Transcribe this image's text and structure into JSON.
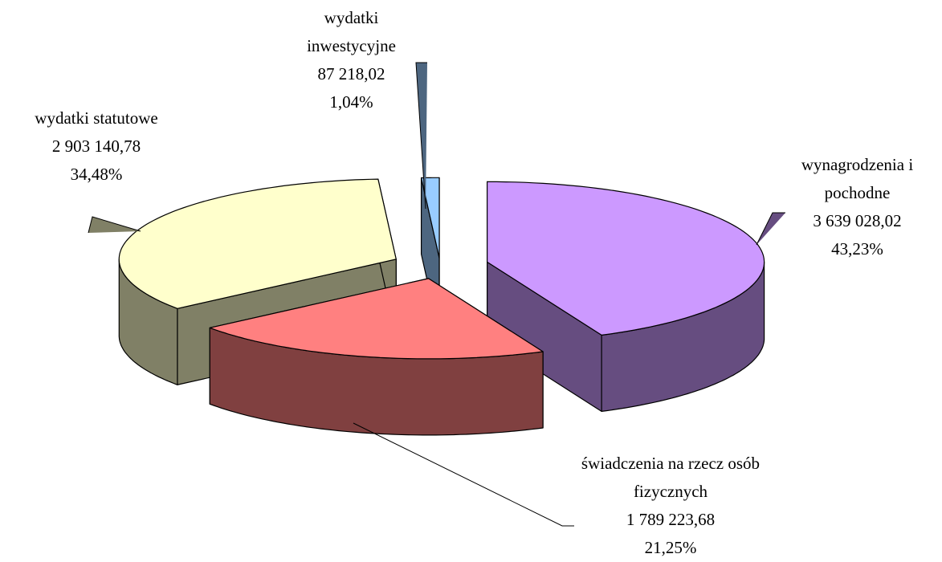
{
  "chart_data": {
    "type": "pie",
    "categories": [
      "wynagrodzenia i pochodne",
      "świadczenia na rzecz osób fizycznych",
      "wydatki statutowe",
      "wydatki inwestycyjne"
    ],
    "values": [
      3639028.02,
      1789223.68,
      2903140.78,
      87218.02
    ],
    "value_labels": [
      "3 639 028,02",
      "1 789 223,68",
      "2 903 140,78",
      "87 218,02"
    ],
    "percentages": [
      43.23,
      21.25,
      34.48,
      1.04
    ],
    "percentage_labels": [
      "43,23%",
      "21,25%",
      "34,48%",
      "1,04%"
    ],
    "colors": [
      "#cc99ff",
      "#ff8080",
      "#ffffcc",
      "#99ccff"
    ],
    "side_colors": [
      "#664d80",
      "#804040",
      "#808066",
      "#4d6680"
    ]
  }
}
